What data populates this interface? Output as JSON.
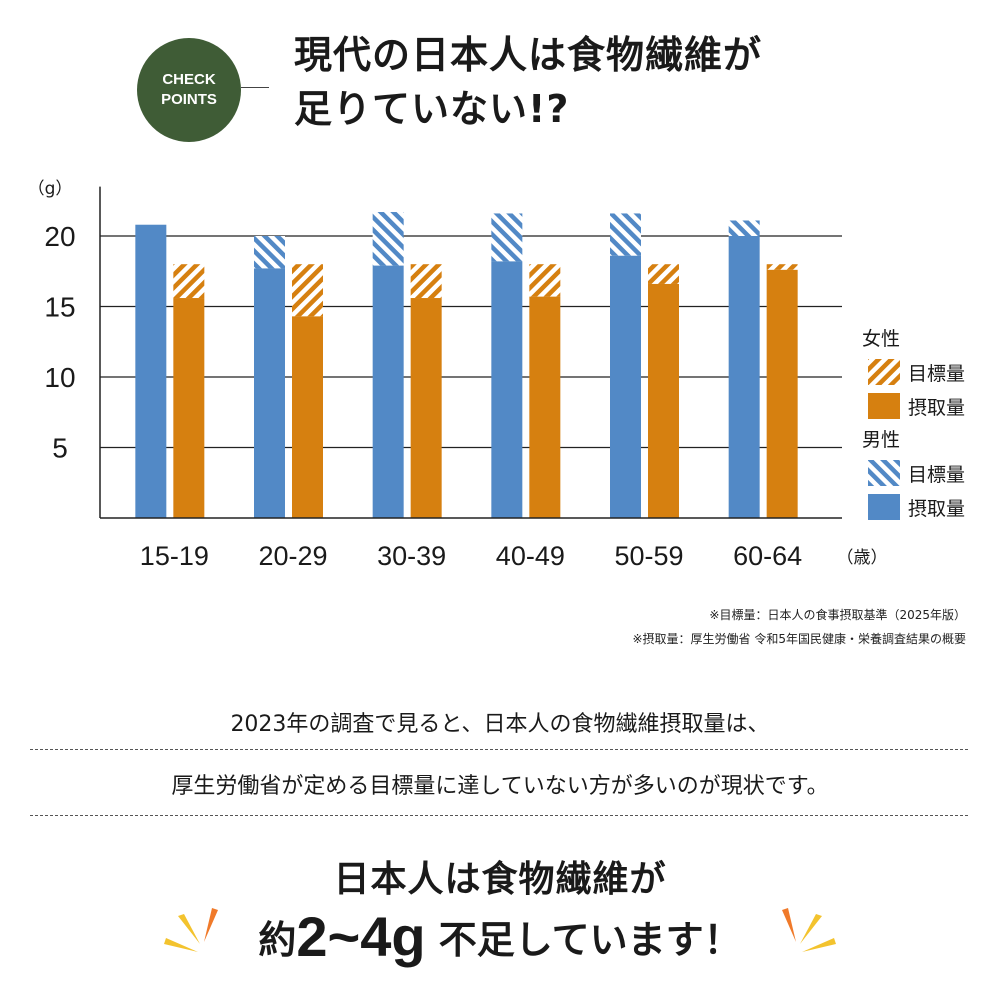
{
  "badge": {
    "line1": "CHECK",
    "line2": "POINTS"
  },
  "headline": {
    "line1": "現代の日本人は食物繊維が",
    "line2": "足りていない!?"
  },
  "chart_data": {
    "type": "bar",
    "y_unit": "（g）",
    "x_unit": "（歳）",
    "categories": [
      "15-19",
      "20-29",
      "30-39",
      "40-49",
      "50-59",
      "60-64"
    ],
    "yticks": [
      5,
      10,
      15,
      20
    ],
    "ylim": [
      0,
      23.5
    ],
    "grid": true,
    "legend_position": "right",
    "groups": [
      {
        "name": "女性",
        "color": "#d68010",
        "series": [
          {
            "name": "目標量",
            "pattern": "hatched",
            "values": [
              18,
              18,
              18,
              18,
              18,
              18
            ]
          },
          {
            "name": "摂取量",
            "pattern": "solid",
            "values": [
              15.6,
              14.3,
              15.6,
              15.7,
              16.6,
              17.6
            ]
          }
        ]
      },
      {
        "name": "男性",
        "color": "#5289c6",
        "series": [
          {
            "name": "目標量",
            "pattern": "hatched",
            "values": [
              null,
              20,
              21.7,
              21.6,
              21.6,
              21.1
            ]
          },
          {
            "name": "摂取量",
            "pattern": "solid",
            "values": [
              20.8,
              17.7,
              17.9,
              18.2,
              18.6,
              20
            ]
          }
        ]
      }
    ]
  },
  "notes": {
    "line1": "※目標量：日本人の食事摂取基準（2025年版）",
    "line2": "※摂取量：厚生労働省 令和5年国民健康・栄養調査結果の概要"
  },
  "description": {
    "line1": "2023年の調査で見ると、日本人の食物繊維摂取量は、",
    "line2": "厚生労働省が定める目標量に達していない方が多いのが現状です。"
  },
  "conclusion": {
    "line1": "日本人は食物繊維が",
    "prefix": "約",
    "amount": "2~4g",
    "suffix": " 不足しています！"
  },
  "colors": {
    "badge": "#3f5c36",
    "burst_orange": "#f07a2a",
    "burst_yellow": "#f3c32e"
  }
}
